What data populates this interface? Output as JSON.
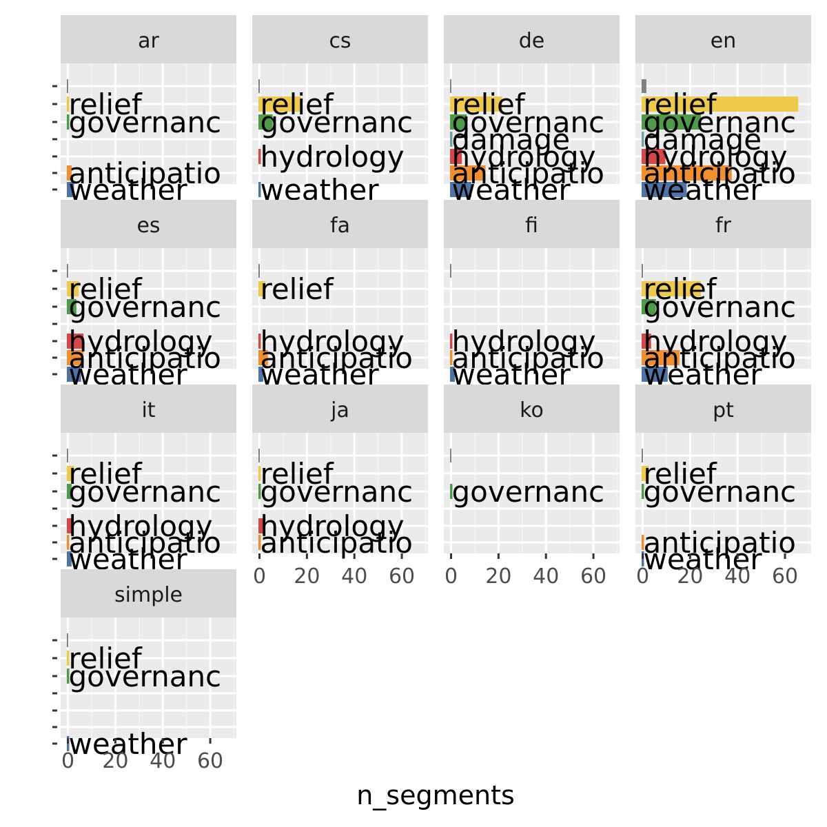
{
  "chart_data": {
    "type": "bar",
    "orientation": "horizontal",
    "facet": "lang",
    "xlabel": "n_segments",
    "ylabel": "",
    "xlim": [
      0,
      70
    ],
    "x_ticks": [
      0,
      20,
      40,
      60
    ],
    "categories": [
      "unknown",
      "relief",
      "governance",
      "damage",
      "hydrology",
      "anticipation",
      "weather"
    ],
    "category_label_text": {
      "unknown": "",
      "relief": "relief",
      "governance": "governanc",
      "damage": "damage",
      "hydrology": "hydrology",
      "anticipation": "anticipatio",
      "weather": "weather"
    },
    "category_colors": {
      "unknown": "#808080",
      "relief": "#EFC94C",
      "governance": "#4E9A48",
      "damage": "#6FA3A0",
      "hydrology": "#D6474A",
      "anticipation": "#F08E32",
      "weather": "#4E74A6"
    },
    "panels": [
      {
        "name": "ar",
        "values": {
          "unknown": 0.5,
          "relief": 1,
          "governance": 1,
          "anticipation": 2,
          "weather": 3
        }
      },
      {
        "name": "cs",
        "values": {
          "unknown": 0.5,
          "relief": 18,
          "governance": 6,
          "hydrology": 1,
          "weather": 1
        }
      },
      {
        "name": "de",
        "values": {
          "unknown": 0.5,
          "relief": 22,
          "governance": 7,
          "damage": 1,
          "hydrology": 5,
          "anticipation": 15,
          "weather": 9
        }
      },
      {
        "name": "en",
        "values": {
          "unknown": 2,
          "relief": 66,
          "governance": 25,
          "damage": 1,
          "hydrology": 10,
          "anticipation": 38,
          "weather": 19
        }
      },
      {
        "name": "es",
        "values": {
          "unknown": 0.5,
          "relief": 5,
          "governance": 4,
          "hydrology": 7,
          "anticipation": 7,
          "weather": 6
        }
      },
      {
        "name": "fa",
        "values": {
          "unknown": 0.5,
          "relief": 3,
          "hydrology": 1,
          "anticipation": 4,
          "weather": 2
        }
      },
      {
        "name": "fi",
        "values": {
          "unknown": 0.5,
          "hydrology": 1,
          "anticipation": 1,
          "weather": 2
        }
      },
      {
        "name": "fr",
        "values": {
          "unknown": 0.5,
          "relief": 25,
          "governance": 6,
          "hydrology": 4,
          "anticipation": 16,
          "weather": 11
        }
      },
      {
        "name": "it",
        "values": {
          "unknown": 0.5,
          "relief": 3,
          "governance": 2,
          "hydrology": 2,
          "anticipation": 1,
          "weather": 2
        }
      },
      {
        "name": "ja",
        "values": {
          "unknown": 0.5,
          "relief": 1,
          "governance": 1,
          "hydrology": 2,
          "anticipation": 1
        }
      },
      {
        "name": "ko",
        "values": {
          "unknown": 0.5,
          "governance": 1
        }
      },
      {
        "name": "pt",
        "values": {
          "unknown": 0.5,
          "relief": 3,
          "governance": 1,
          "anticipation": 1,
          "weather": 1
        }
      },
      {
        "name": "simple",
        "values": {
          "unknown": 0.5,
          "relief": 1,
          "governance": 1,
          "weather": 1
        }
      }
    ]
  }
}
